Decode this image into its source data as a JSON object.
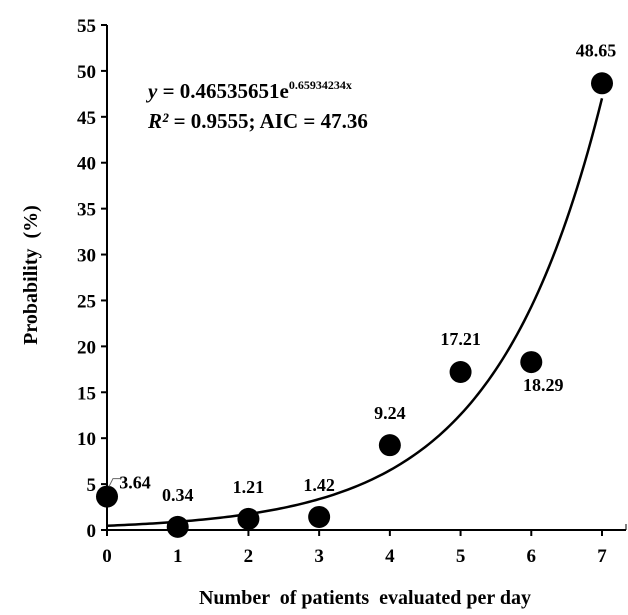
{
  "chart_data": {
    "type": "scatter",
    "xlabel": "Number  of patients  evaluated per day",
    "ylabel": "Probability  (%)",
    "xlim": [
      0,
      7
    ],
    "ylim": [
      0,
      55
    ],
    "x_ticks": [
      "0",
      "1",
      "2",
      "3",
      "4",
      "5",
      "6",
      "7"
    ],
    "y_ticks": [
      "0",
      "5",
      "10",
      "15",
      "20",
      "25",
      "30",
      "35",
      "40",
      "45",
      "50",
      "55"
    ],
    "grid": false,
    "series": [
      {
        "x": [
          0,
          1,
          2,
          3,
          4,
          5,
          6,
          7
        ],
        "y": [
          3.64,
          0.34,
          1.21,
          1.42,
          9.24,
          17.21,
          18.29,
          48.65
        ],
        "labels": [
          "3.64",
          "0.34",
          "1.21",
          "1.42",
          "9.24",
          "17.21",
          "18.29",
          "48.65"
        ]
      }
    ],
    "trendline": {
      "type": "exponential",
      "a": 0.46535651,
      "b": 0.65934234
    },
    "equation": {
      "y_var": "y",
      "eq_rest": " = 0.46535651e",
      "exponent": "0.65934234x",
      "r2_var": "R²",
      "r2_rest": " = 0.9555; AIC = 47.36"
    }
  }
}
